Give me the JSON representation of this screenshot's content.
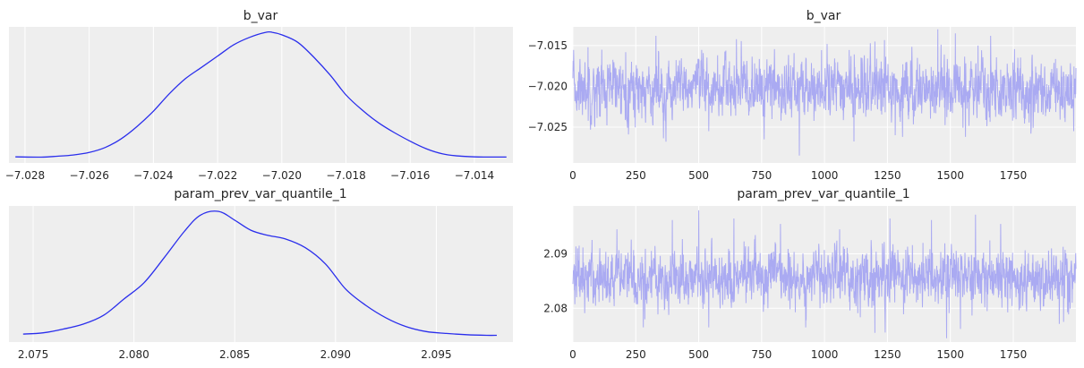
{
  "chart_data": [
    {
      "type": "line",
      "title": "b_var",
      "xlabel": "",
      "ylabel": "",
      "xlim": [
        -7.0285,
        -7.0128
      ],
      "ylim": [
        0,
        1
      ],
      "x_ticks": [
        -7.028,
        -7.026,
        -7.024,
        -7.022,
        -7.02,
        -7.018,
        -7.016,
        -7.014
      ],
      "x_tick_labels": [
        "−7.028",
        "−7.026",
        "−7.024",
        "−7.022",
        "−7.020",
        "−7.018",
        "−7.016",
        "−7.014"
      ],
      "y_ticks_shown": false,
      "grid": true,
      "color": "#2a2eec",
      "x": [
        -7.0283,
        -7.0275,
        -7.027,
        -7.0265,
        -7.026,
        -7.0255,
        -7.025,
        -7.0245,
        -7.024,
        -7.0235,
        -7.023,
        -7.0225,
        -7.022,
        -7.0215,
        -7.021,
        -7.0205,
        -7.0203,
        -7.02,
        -7.0195,
        -7.019,
        -7.0185,
        -7.018,
        -7.0175,
        -7.017,
        -7.0165,
        -7.016,
        -7.0155,
        -7.015,
        -7.0145,
        -7.014,
        -7.0135,
        -7.013
      ],
      "y": [
        0.005,
        0.003,
        0.01,
        0.02,
        0.04,
        0.08,
        0.15,
        0.25,
        0.37,
        0.51,
        0.63,
        0.72,
        0.81,
        0.9,
        0.96,
        1.0,
        1.0,
        0.98,
        0.92,
        0.8,
        0.66,
        0.5,
        0.38,
        0.28,
        0.2,
        0.13,
        0.07,
        0.03,
        0.012,
        0.005,
        0.004,
        0.004
      ]
    },
    {
      "type": "line",
      "title": "b_var",
      "xlabel": "",
      "ylabel": "",
      "xlim": [
        0,
        1999
      ],
      "ylim": [
        -7.0294,
        -7.0127
      ],
      "x_ticks": [
        0,
        250,
        500,
        750,
        1000,
        1250,
        1500,
        1750
      ],
      "x_tick_labels": [
        "0",
        "250",
        "500",
        "750",
        "1000",
        "1250",
        "1500",
        "1750"
      ],
      "y_ticks": [
        -7.015,
        -7.02,
        -7.025
      ],
      "y_tick_labels": [
        "−7.015",
        "−7.020",
        "−7.025"
      ],
      "grid": true,
      "color": "#aaaaf2",
      "n_draws": 2000,
      "center": -7.0203,
      "spread": 0.0019,
      "spikes": [
        {
          "x": 60,
          "y": -7.0152
        },
        {
          "x": 115,
          "y": -7.0155
        },
        {
          "x": 210,
          "y": -7.0158
        },
        {
          "x": 330,
          "y": -7.0138
        },
        {
          "x": 370,
          "y": -7.0268
        },
        {
          "x": 540,
          "y": -7.0255
        },
        {
          "x": 650,
          "y": -7.0142
        },
        {
          "x": 760,
          "y": -7.0265
        },
        {
          "x": 900,
          "y": -7.0285
        },
        {
          "x": 1010,
          "y": -7.0148
        },
        {
          "x": 1200,
          "y": -7.0145
        },
        {
          "x": 1310,
          "y": -7.0262
        },
        {
          "x": 1450,
          "y": -7.013
        },
        {
          "x": 1520,
          "y": -7.0135
        },
        {
          "x": 1560,
          "y": -7.0262
        },
        {
          "x": 1610,
          "y": -7.015
        },
        {
          "x": 1660,
          "y": -7.0138
        },
        {
          "x": 1820,
          "y": -7.0258
        },
        {
          "x": 1990,
          "y": -7.0255
        }
      ]
    },
    {
      "type": "line",
      "title": "param_prev_var_quantile_1",
      "xlabel": "",
      "ylabel": "",
      "xlim": [
        2.0738,
        2.0988
      ],
      "ylim": [
        0,
        1
      ],
      "x_ticks": [
        2.075,
        2.08,
        2.085,
        2.09,
        2.095
      ],
      "x_tick_labels": [
        "2.075",
        "2.080",
        "2.085",
        "2.090",
        "2.095"
      ],
      "y_ticks_shown": false,
      "grid": true,
      "color": "#2a2eec",
      "x": [
        2.0745,
        2.0755,
        2.0765,
        2.0775,
        2.0785,
        2.0795,
        2.0805,
        2.0815,
        2.0825,
        2.0833,
        2.0842,
        2.085,
        2.0858,
        2.0866,
        2.0875,
        2.0885,
        2.0895,
        2.0905,
        2.0915,
        2.0925,
        2.0935,
        2.0945,
        2.0955,
        2.0965,
        2.0975,
        2.098
      ],
      "y": [
        0.02,
        0.03,
        0.06,
        0.1,
        0.17,
        0.3,
        0.43,
        0.63,
        0.84,
        0.97,
        1.0,
        0.93,
        0.85,
        0.81,
        0.78,
        0.71,
        0.58,
        0.38,
        0.25,
        0.15,
        0.08,
        0.04,
        0.025,
        0.015,
        0.01,
        0.01
      ]
    },
    {
      "type": "line",
      "title": "param_prev_var_quantile_1",
      "xlabel": "",
      "ylabel": "",
      "xlim": [
        0,
        1999
      ],
      "ylim": [
        2.0738,
        2.0988
      ],
      "x_ticks": [
        0,
        250,
        500,
        750,
        1000,
        1250,
        1500,
        1750
      ],
      "x_tick_labels": [
        "0",
        "250",
        "500",
        "750",
        "1000",
        "1250",
        "1500",
        "1750"
      ],
      "y_ticks": [
        2.09,
        2.08
      ],
      "y_tick_labels": [
        "2.09",
        "2.08"
      ],
      "grid": true,
      "color": "#aaaaf2",
      "n_draws": 2000,
      "center": 2.0857,
      "spread": 0.0028,
      "spikes": [
        {
          "x": 25,
          "y": 2.0915
        },
        {
          "x": 175,
          "y": 2.0945
        },
        {
          "x": 280,
          "y": 2.0765
        },
        {
          "x": 395,
          "y": 2.0962
        },
        {
          "x": 500,
          "y": 2.098
        },
        {
          "x": 540,
          "y": 2.0765
        },
        {
          "x": 640,
          "y": 2.0965
        },
        {
          "x": 825,
          "y": 2.0955
        },
        {
          "x": 925,
          "y": 2.0765
        },
        {
          "x": 1060,
          "y": 2.0945
        },
        {
          "x": 1200,
          "y": 2.0755
        },
        {
          "x": 1260,
          "y": 2.0965
        },
        {
          "x": 1425,
          "y": 2.0962
        },
        {
          "x": 1485,
          "y": 2.0745
        },
        {
          "x": 1540,
          "y": 2.0762
        },
        {
          "x": 1600,
          "y": 2.0972
        },
        {
          "x": 1700,
          "y": 2.0955
        },
        {
          "x": 1950,
          "y": 2.0775
        }
      ]
    }
  ]
}
